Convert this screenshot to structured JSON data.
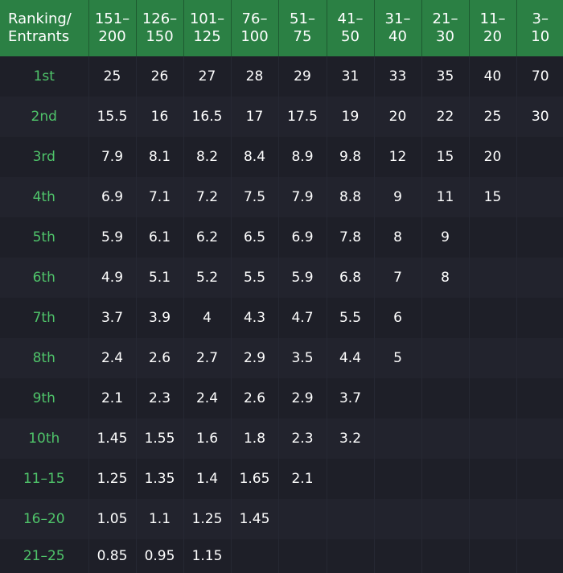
{
  "table": {
    "corner_header": [
      "Ranking/",
      "Entrants"
    ],
    "columns": [
      [
        "151–",
        "200"
      ],
      [
        "126–",
        "150"
      ],
      [
        "101–",
        "125"
      ],
      [
        "76–",
        "100"
      ],
      [
        "51–",
        "75"
      ],
      [
        "41–",
        "50"
      ],
      [
        "31–",
        "40"
      ],
      [
        "21–",
        "30"
      ],
      [
        "11–",
        "20"
      ],
      [
        "3–",
        "10"
      ]
    ],
    "rows": [
      {
        "rank": "1st",
        "values": [
          "25",
          "26",
          "27",
          "28",
          "29",
          "31",
          "33",
          "35",
          "40",
          "70"
        ]
      },
      {
        "rank": "2nd",
        "values": [
          "15.5",
          "16",
          "16.5",
          "17",
          "17.5",
          "19",
          "20",
          "22",
          "25",
          "30"
        ]
      },
      {
        "rank": "3rd",
        "values": [
          "7.9",
          "8.1",
          "8.2",
          "8.4",
          "8.9",
          "9.8",
          "12",
          "15",
          "20",
          ""
        ]
      },
      {
        "rank": "4th",
        "values": [
          "6.9",
          "7.1",
          "7.2",
          "7.5",
          "7.9",
          "8.8",
          "9",
          "11",
          "15",
          ""
        ]
      },
      {
        "rank": "5th",
        "values": [
          "5.9",
          "6.1",
          "6.2",
          "6.5",
          "6.9",
          "7.8",
          "8",
          "9",
          "",
          ""
        ]
      },
      {
        "rank": "6th",
        "values": [
          "4.9",
          "5.1",
          "5.2",
          "5.5",
          "5.9",
          "6.8",
          "7",
          "8",
          "",
          ""
        ]
      },
      {
        "rank": "7th",
        "values": [
          "3.7",
          "3.9",
          "4",
          "4.3",
          "4.7",
          "5.5",
          "6",
          "",
          "",
          ""
        ]
      },
      {
        "rank": "8th",
        "values": [
          "2.4",
          "2.6",
          "2.7",
          "2.9",
          "3.5",
          "4.4",
          "5",
          "",
          "",
          ""
        ]
      },
      {
        "rank": "9th",
        "values": [
          "2.1",
          "2.3",
          "2.4",
          "2.6",
          "2.9",
          "3.7",
          "",
          "",
          "",
          ""
        ]
      },
      {
        "rank": "10th",
        "values": [
          "1.45",
          "1.55",
          "1.6",
          "1.8",
          "2.3",
          "3.2",
          "",
          "",
          "",
          ""
        ]
      },
      {
        "rank": "11–15",
        "values": [
          "1.25",
          "1.35",
          "1.4",
          "1.65",
          "2.1",
          "",
          "",
          "",
          "",
          ""
        ]
      },
      {
        "rank": "16–20",
        "values": [
          "1.05",
          "1.1",
          "1.25",
          "1.45",
          "",
          "",
          "",
          "",
          "",
          ""
        ]
      },
      {
        "rank": "21–25",
        "values": [
          "0.85",
          "0.95",
          "1.15",
          "",
          "",
          "",
          "",
          "",
          "",
          ""
        ]
      }
    ],
    "colors": {
      "header_bg": "#2b8044",
      "rank_text": "#4fc46a",
      "row_bg_a": "#1e1f28",
      "row_bg_b": "#22232d"
    }
  }
}
